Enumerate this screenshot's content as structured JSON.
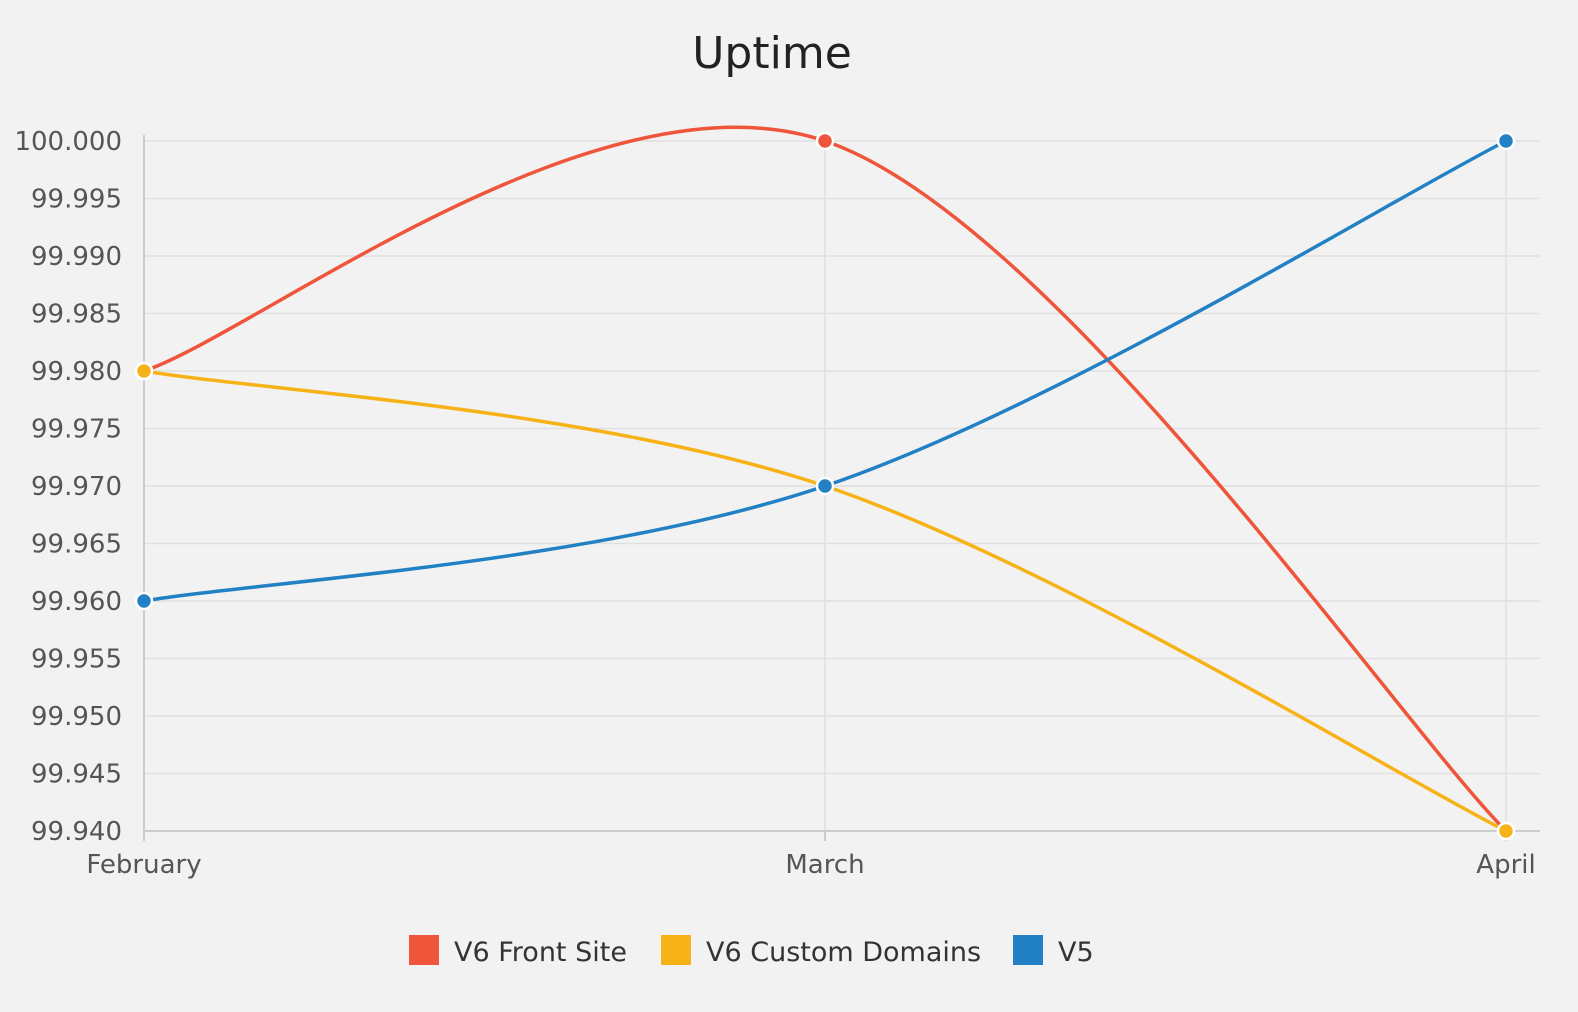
{
  "chart_data": {
    "type": "line",
    "title": "Uptime",
    "xlabel": "",
    "ylabel": "",
    "categories": [
      "February",
      "March",
      "April"
    ],
    "ylim": [
      99.94,
      100.0
    ],
    "yticks": [
      "99.940",
      "99.945",
      "99.950",
      "99.955",
      "99.960",
      "99.965",
      "99.970",
      "99.975",
      "99.980",
      "99.985",
      "99.990",
      "99.995",
      "100.000"
    ],
    "ytick_values": [
      99.94,
      99.945,
      99.95,
      99.955,
      99.96,
      99.965,
      99.97,
      99.975,
      99.98,
      99.985,
      99.99,
      99.995,
      100.0
    ],
    "grid": true,
    "smooth": true,
    "legend_position": "bottom-center",
    "series": [
      {
        "name": "V6 Front Site",
        "color": "#ef553b",
        "values": [
          99.98,
          100.0,
          99.94
        ]
      },
      {
        "name": "V6 Custom Domains",
        "color": "#f7b218",
        "values": [
          99.98,
          99.97,
          99.94
        ]
      },
      {
        "name": "V5",
        "color": "#2281c4",
        "values": [
          99.96,
          99.97,
          100.0
        ]
      }
    ]
  }
}
